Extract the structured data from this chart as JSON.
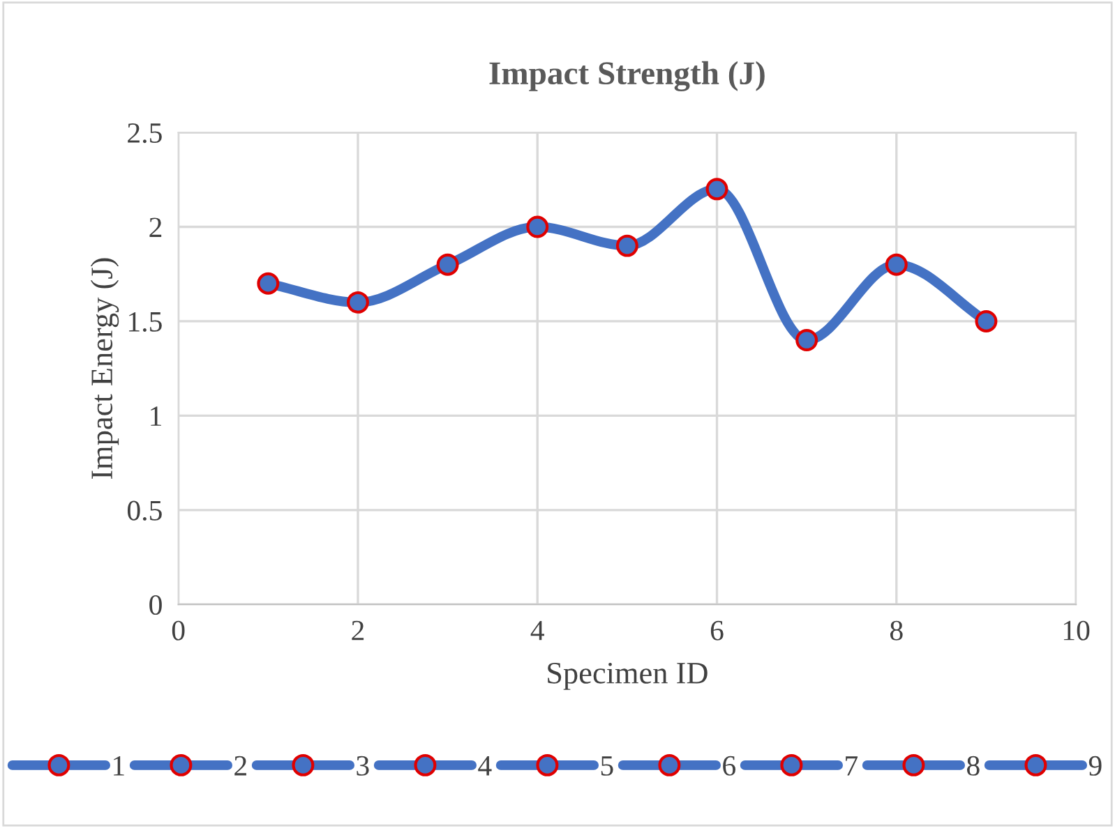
{
  "chart_data": {
    "type": "line",
    "title": "Impact Strength (J)",
    "xlabel": "Specimen ID",
    "ylabel": "Impact Energy (J)",
    "xlim": [
      0,
      10
    ],
    "xticks": [
      0,
      2,
      4,
      6,
      8,
      10
    ],
    "ylim": [
      0,
      2.5
    ],
    "yticks": [
      0,
      0.5,
      1,
      1.5,
      2,
      2.5
    ],
    "grid": true,
    "legend": "bottom",
    "marker": "circle",
    "line_style": "solid",
    "series": [
      {
        "color": "#4472c4",
        "x": [
          1,
          2,
          3,
          4,
          5,
          6,
          7,
          8,
          9
        ],
        "values": [
          1.7,
          1.6,
          1.8,
          2.0,
          1.9,
          2.2,
          1.4,
          1.8,
          1.5
        ],
        "marker": "none"
      },
      {
        "name": "1",
        "color": "#4472c4",
        "x": [
          1
        ],
        "values": [
          1.7
        ]
      },
      {
        "name": "2",
        "color": "#4472c4",
        "x": [
          2
        ],
        "values": [
          1.6
        ]
      },
      {
        "name": "3",
        "color": "#4472c4",
        "x": [
          3
        ],
        "values": [
          1.8
        ]
      },
      {
        "name": "4",
        "color": "#4472c4",
        "x": [
          4
        ],
        "values": [
          2.0
        ]
      },
      {
        "name": "5",
        "color": "#4472c4",
        "x": [
          5
        ],
        "values": [
          1.9
        ]
      },
      {
        "name": "6",
        "color": "#4472c4",
        "x": [
          6
        ],
        "values": [
          2.2
        ]
      },
      {
        "name": "7",
        "color": "#4472c4",
        "x": [
          7
        ],
        "values": [
          1.4
        ]
      },
      {
        "name": "8",
        "color": "#4472c4",
        "x": [
          8
        ],
        "values": [
          1.8
        ]
      },
      {
        "name": "9",
        "color": "#4472c4",
        "x": [
          9
        ],
        "values": [
          1.5
        ]
      }
    ]
  }
}
